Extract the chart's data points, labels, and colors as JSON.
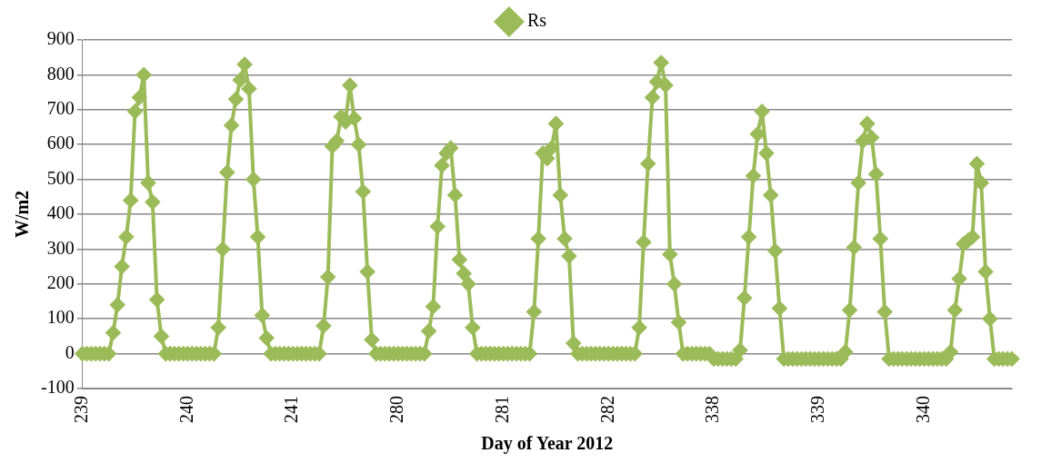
{
  "chart_data": {
    "type": "line",
    "xlabel": "Day of Year 2012",
    "ylabel": "W/m2",
    "categories": [
      "239",
      null,
      null,
      null,
      null,
      null,
      null,
      null,
      null,
      null,
      null,
      null,
      null,
      null,
      null,
      null,
      null,
      null,
      null,
      null,
      null,
      null,
      null,
      null,
      "240",
      null,
      null,
      null,
      null,
      null,
      null,
      null,
      null,
      null,
      null,
      null,
      null,
      null,
      null,
      null,
      null,
      null,
      null,
      null,
      null,
      null,
      null,
      null,
      "241",
      null,
      null,
      null,
      null,
      null,
      null,
      null,
      null,
      null,
      null,
      null,
      null,
      null,
      null,
      null,
      null,
      null,
      null,
      null,
      null,
      null,
      null,
      null,
      "280",
      null,
      null,
      null,
      null,
      null,
      null,
      null,
      null,
      null,
      null,
      null,
      null,
      null,
      null,
      null,
      null,
      null,
      null,
      null,
      null,
      null,
      null,
      null,
      "281",
      null,
      null,
      null,
      null,
      null,
      null,
      null,
      null,
      null,
      null,
      null,
      null,
      null,
      null,
      null,
      null,
      null,
      null,
      null,
      null,
      null,
      null,
      null,
      "282",
      null,
      null,
      null,
      null,
      null,
      null,
      null,
      null,
      null,
      null,
      null,
      null,
      null,
      null,
      null,
      null,
      null,
      null,
      null,
      null,
      null,
      null,
      null,
      "338",
      null,
      null,
      null,
      null,
      null,
      null,
      null,
      null,
      null,
      null,
      null,
      null,
      null,
      null,
      null,
      null,
      null,
      null,
      null,
      null,
      null,
      null,
      null,
      "339",
      null,
      null,
      null,
      null,
      null,
      null,
      null,
      null,
      null,
      null,
      null,
      null,
      null,
      null,
      null,
      null,
      null,
      null,
      null,
      null,
      null,
      null,
      null,
      "340",
      null,
      null,
      null,
      null,
      null,
      null,
      null,
      null,
      null,
      null,
      null,
      null,
      null,
      null,
      null,
      null,
      null,
      null,
      null,
      null
    ],
    "series": [
      {
        "name": "Rs",
        "color": "#9bbb59",
        "values": [
          0,
          0,
          0,
          0,
          0,
          0,
          0,
          60,
          140,
          250,
          335,
          440,
          695,
          735,
          800,
          490,
          435,
          155,
          50,
          0,
          0,
          0,
          0,
          0,
          0,
          0,
          0,
          0,
          0,
          0,
          0,
          75,
          300,
          520,
          655,
          730,
          785,
          830,
          760,
          500,
          335,
          110,
          45,
          0,
          0,
          0,
          0,
          0,
          0,
          0,
          0,
          0,
          0,
          0,
          0,
          80,
          220,
          595,
          610,
          680,
          665,
          770,
          675,
          600,
          465,
          235,
          40,
          0,
          0,
          0,
          0,
          0,
          0,
          0,
          0,
          0,
          0,
          0,
          0,
          65,
          135,
          365,
          540,
          575,
          590,
          455,
          270,
          230,
          200,
          75,
          0,
          0,
          0,
          0,
          0,
          0,
          0,
          0,
          0,
          0,
          0,
          0,
          0,
          120,
          330,
          575,
          560,
          590,
          660,
          455,
          330,
          280,
          30,
          0,
          0,
          0,
          0,
          0,
          0,
          0,
          0,
          0,
          0,
          0,
          0,
          0,
          0,
          75,
          320,
          545,
          735,
          780,
          835,
          770,
          285,
          200,
          90,
          0,
          0,
          0,
          0,
          0,
          0,
          0,
          -15,
          -15,
          -15,
          -15,
          -15,
          -15,
          10,
          160,
          335,
          510,
          630,
          695,
          575,
          455,
          295,
          130,
          -15,
          -15,
          -15,
          -15,
          -15,
          -15,
          -15,
          -15,
          -15,
          -15,
          -15,
          -15,
          -15,
          -15,
          5,
          125,
          305,
          490,
          610,
          660,
          620,
          515,
          330,
          120,
          -15,
          -15,
          -15,
          -15,
          -15,
          -15,
          -15,
          -15,
          -15,
          -15,
          -15,
          -15,
          -15,
          -15,
          5,
          125,
          215,
          315,
          325,
          335,
          545,
          490,
          235,
          100,
          -15,
          -15,
          -15,
          -15,
          -15
        ]
      }
    ],
    "ylim": [
      -100,
      900
    ],
    "yticks": [
      -100,
      0,
      100,
      200,
      300,
      400,
      500,
      600,
      700,
      800,
      900
    ],
    "grid": "y",
    "legend": "top",
    "marker": "diamond",
    "line_style": "solid"
  }
}
